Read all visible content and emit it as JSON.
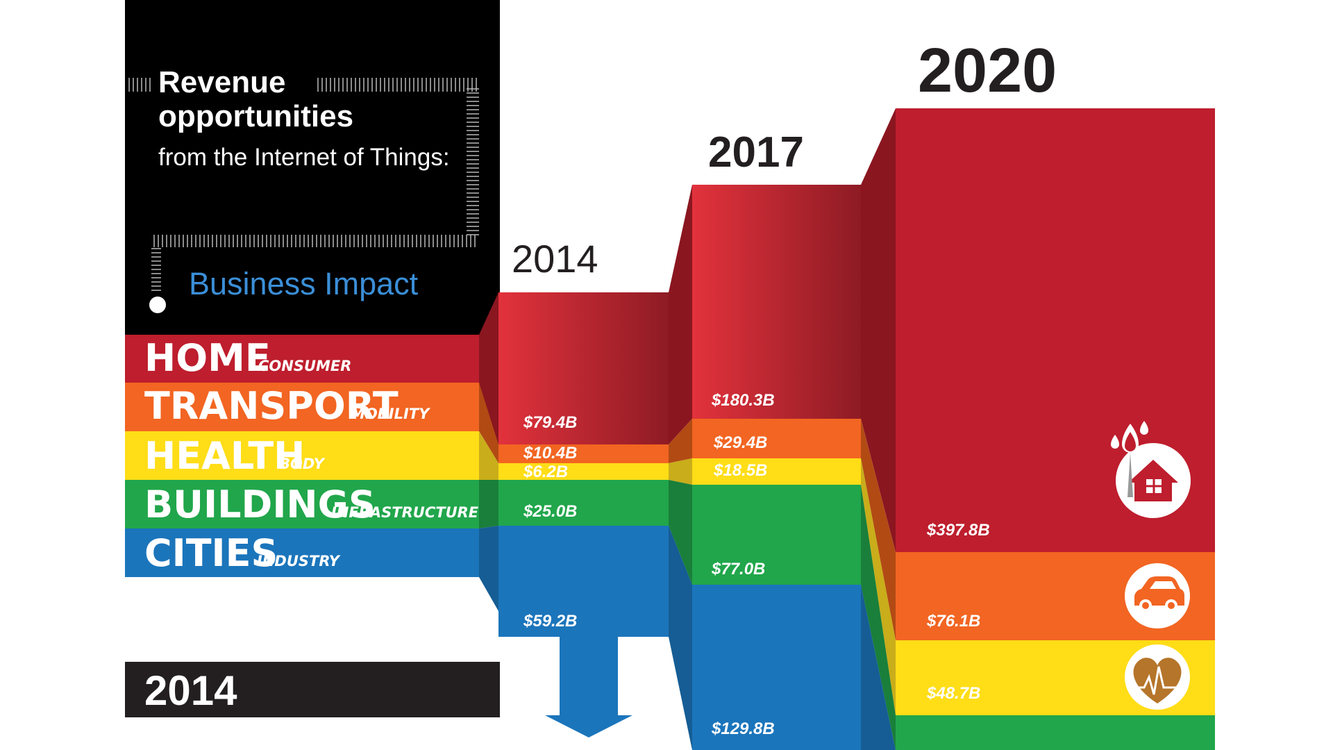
{
  "title": {
    "line1": "Revenue",
    "line2": "opportunities",
    "line3": "from the Internet of Things:",
    "section": "Business Impact"
  },
  "chart_data": {
    "type": "bar",
    "stacked": true,
    "categories": [
      "2014",
      "2017",
      "2020"
    ],
    "series": [
      {
        "name": "HOME",
        "subtitle": "CONSUMER",
        "color": "#be1e2d",
        "values": [
          79.4,
          180.3,
          397.8
        ],
        "labels": [
          "$79.4B",
          "$180.3B",
          "$397.8B"
        ]
      },
      {
        "name": "TRANSPORT",
        "subtitle": "MOBILITY",
        "color": "#f26522",
        "values": [
          10.4,
          29.4,
          76.1
        ],
        "labels": [
          "$10.4B",
          "$29.4B",
          "$76.1B"
        ]
      },
      {
        "name": "HEALTH",
        "subtitle": "BODY",
        "color": "#ffdd17",
        "values": [
          6.2,
          18.5,
          48.7
        ],
        "labels": [
          "$6.2B",
          "$18.5B",
          "$48.7B"
        ]
      },
      {
        "name": "BUILDINGS",
        "subtitle": "INFRASTRUCTURE",
        "color": "#21a64b",
        "values": [
          25.0,
          77.0,
          null
        ],
        "labels": [
          "$25.0B",
          "$77.0B",
          ""
        ]
      },
      {
        "name": "CITIES",
        "subtitle": "INDUSTRY",
        "color": "#1b75bb",
        "values": [
          59.2,
          129.8,
          null
        ],
        "labels": [
          "$59.2B",
          "$129.8B",
          ""
        ]
      }
    ]
  },
  "footer_label": "2014",
  "icons": [
    "home-icon",
    "car-icon",
    "heart-icon"
  ]
}
